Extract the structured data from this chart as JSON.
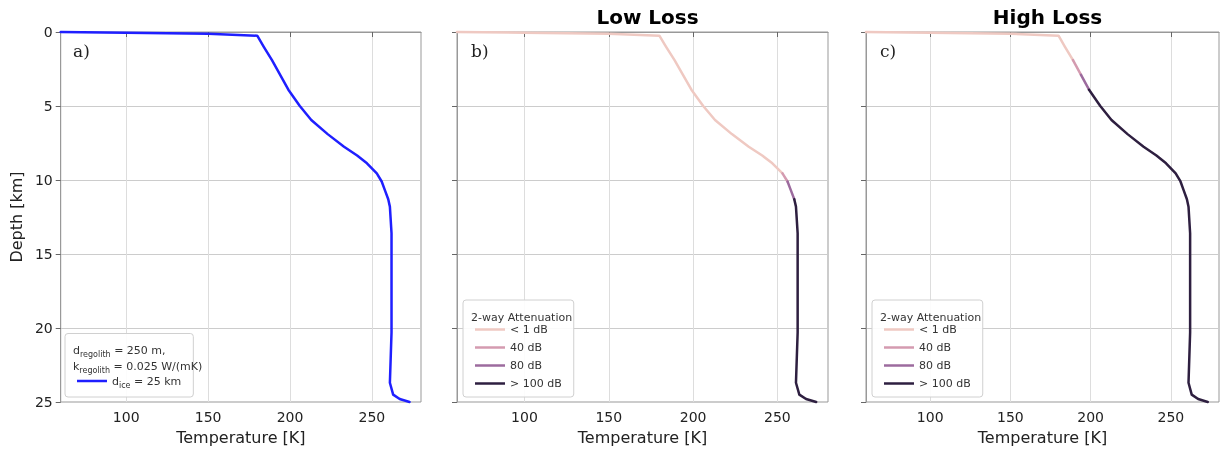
{
  "chart_data": [
    {
      "type": "line",
      "xlabel": "Temperature [K]",
      "ylabel": "Depth [km]",
      "legend_title": "d$_{regolith}$ = 250 m, k$_{regolith}$ = 0.025 W/(mK)",
      "annotations": [
        "a)"
      ],
      "xlim": [
        60,
        280
      ],
      "xticks": [
        100,
        150,
        200,
        250
      ],
      "ylim": [
        25,
        0
      ],
      "yticks": [
        0,
        5,
        10,
        15,
        20,
        25
      ],
      "grid": true,
      "legend": "bottom left",
      "marker": "none",
      "line_style": "solid",
      "series": [
        {
          "name": "d$_{ice}$ = 25 km",
          "color": "#1f1fff",
          "x": [
            60,
            100,
            150,
            180,
            184,
            189,
            194,
            199,
            206,
            213,
            223,
            233,
            241,
            247,
            253,
            256,
            258,
            260,
            261,
            262,
            262,
            261,
            263,
            267,
            273
          ],
          "values": [
            0,
            0.05,
            0.12,
            0.25,
            1,
            1.9,
            2.9,
            3.9,
            5,
            5.95,
            6.9,
            7.75,
            8.35,
            8.87,
            9.55,
            10.1,
            10.7,
            11.3,
            11.8,
            13.6,
            20.3,
            23.7,
            24.5,
            24.8,
            25
          ]
        }
      ]
    },
    {
      "type": "line",
      "title": "Low Loss",
      "xlabel": "Temperature [K]",
      "legend_title": "2-way Attenuation",
      "annotations": [
        "b)"
      ],
      "xlim": [
        60,
        280
      ],
      "xticks": [
        100,
        150,
        200,
        250
      ],
      "ylim": [
        25,
        0
      ],
      "yticks": [
        0,
        5,
        10,
        15,
        20,
        25
      ],
      "tick_labels": "x",
      "grid": true,
      "legend": "bottom left",
      "marker": "none",
      "line_style": "solid",
      "series": [
        {
          "name": "< 1 dB",
          "color": "#efc9c2",
          "x": [
            60,
            100,
            150,
            180,
            184,
            189,
            194,
            199,
            206,
            213,
            223,
            233,
            241,
            247,
            253
          ],
          "values": [
            0,
            0.05,
            0.12,
            0.25,
            1,
            1.9,
            2.9,
            3.9,
            5,
            5.95,
            6.9,
            7.75,
            8.35,
            8.87,
            9.55
          ]
        },
        {
          "name": "40 dB",
          "color": "#d49bb0",
          "x": [
            253,
            256
          ],
          "values": [
            9.55,
            10.1
          ]
        },
        {
          "name": "80 dB",
          "color": "#9c6b9e",
          "x": [
            256,
            258,
            260
          ],
          "values": [
            10.1,
            10.7,
            11.3
          ]
        },
        {
          "name": "> 100 dB",
          "color": "#2e1f40",
          "x": [
            260,
            261,
            262,
            262,
            261,
            263,
            267,
            273
          ],
          "values": [
            11.3,
            11.8,
            13.6,
            20.3,
            23.7,
            24.5,
            24.8,
            25
          ]
        }
      ]
    },
    {
      "type": "line",
      "title": "High Loss",
      "xlabel": "Temperature [K]",
      "legend_title": "2-way Attenuation",
      "annotations": [
        "c)"
      ],
      "xlim": [
        60,
        280
      ],
      "xticks": [
        100,
        150,
        200,
        250
      ],
      "ylim": [
        25,
        0
      ],
      "yticks": [
        0,
        5,
        10,
        15,
        20,
        25
      ],
      "tick_labels": "x",
      "grid": true,
      "legend": "bottom left",
      "marker": "none",
      "line_style": "solid",
      "series": [
        {
          "name": "< 1 dB",
          "color": "#efc9c2",
          "x": [
            60,
            100,
            150,
            180,
            184,
            189
          ],
          "values": [
            0,
            0.05,
            0.12,
            0.25,
            1,
            1.9
          ]
        },
        {
          "name": "40 dB",
          "color": "#d49bb0",
          "x": [
            189,
            194
          ],
          "values": [
            1.9,
            2.9
          ]
        },
        {
          "name": "80 dB",
          "color": "#9c6b9e",
          "x": [
            194,
            199
          ],
          "values": [
            2.9,
            3.9
          ]
        },
        {
          "name": "> 100 dB",
          "color": "#2e1f40",
          "x": [
            199,
            206,
            213,
            223,
            233,
            241,
            247,
            253,
            256,
            258,
            260,
            261,
            262,
            262,
            261,
            263,
            267,
            273
          ],
          "values": [
            3.9,
            5,
            5.95,
            6.9,
            7.75,
            8.35,
            8.87,
            9.55,
            10.1,
            10.7,
            11.3,
            11.8,
            13.6,
            20.3,
            23.7,
            24.5,
            24.8,
            25
          ]
        }
      ]
    }
  ]
}
